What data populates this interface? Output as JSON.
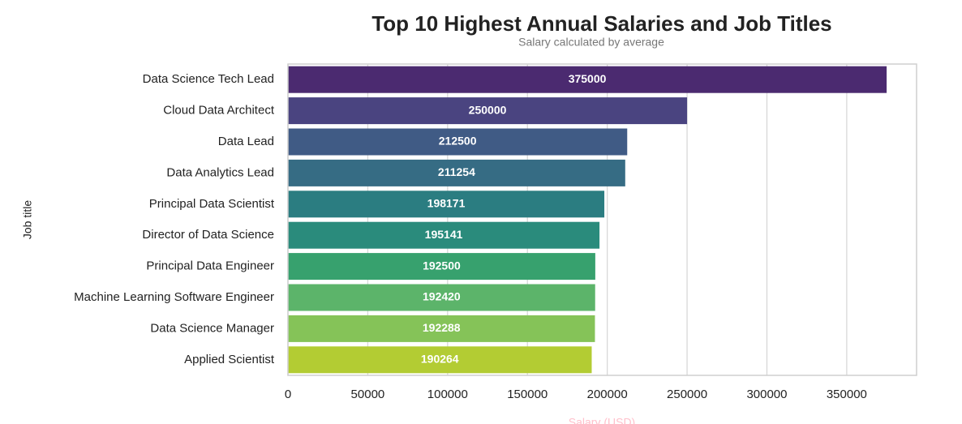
{
  "chart_data": {
    "type": "barh",
    "title": "Top 10 Highest Annual Salaries and Job Titles",
    "subtitle": "Salary calculated by average",
    "x_label": "Salary (USD)",
    "y_label": "Job title",
    "categories": [
      "Data Science Tech Lead",
      "Cloud Data Architect",
      "Data Lead",
      "Data Analytics Lead",
      "Principal Data Scientist",
      "Director of Data Science",
      "Principal Data Engineer",
      "Machine Learning Software Engineer",
      "Data Science Manager",
      "Applied Scientist"
    ],
    "values": [
      375000,
      250000,
      212500,
      211254,
      198171,
      195141,
      192500,
      192420,
      192288,
      190264
    ],
    "colors": [
      "#4b2a70",
      "#4a4480",
      "#405b85",
      "#366c84",
      "#2b7d81",
      "#2a8b7c",
      "#37a16e",
      "#5cb46a",
      "#85c358",
      "#b3cc33"
    ],
    "xlim": [
      0,
      393750
    ],
    "xticks": [
      0,
      50000,
      100000,
      150000,
      200000,
      250000,
      300000,
      350000
    ],
    "grid": true
  }
}
